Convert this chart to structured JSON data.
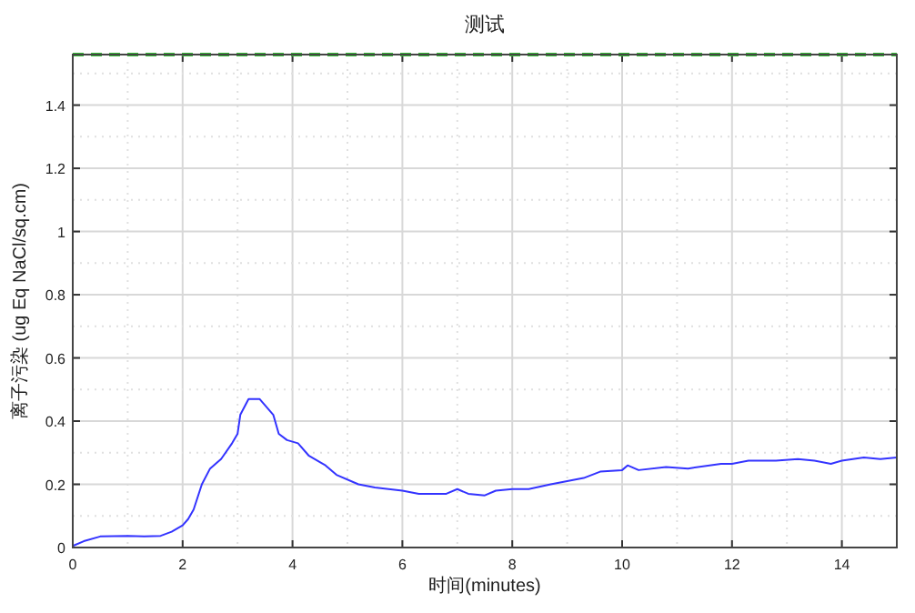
{
  "chart_data": {
    "type": "line",
    "title": "测试",
    "xlabel": "时间(minutes)",
    "ylabel": "离子污染 (ug Eq NaCl/sq.cm)",
    "xlim": [
      0,
      15
    ],
    "ylim": [
      0,
      1.56
    ],
    "xticks": [
      0,
      2,
      4,
      6,
      8,
      10,
      12,
      14
    ],
    "yticks": [
      0,
      0.2,
      0.4,
      0.6,
      0.8,
      1,
      1.2,
      1.4
    ],
    "grid": true,
    "marker": "none",
    "line_style": "solid",
    "ref_lines": [
      {
        "axis": "y",
        "value": 1.56,
        "label": null,
        "color": "#33bb33",
        "line_style": "dashed"
      }
    ],
    "series": [
      {
        "color": "#3333ff",
        "x": [
          0,
          0.2,
          0.5,
          1,
          1.3,
          1.6,
          1.8,
          2,
          2.1,
          2.2,
          2.35,
          2.5,
          2.7,
          2.9,
          3.0,
          3.05,
          3.2,
          3.4,
          3.55,
          3.65,
          3.75,
          3.9,
          4.1,
          4.3,
          4.6,
          4.8,
          5.2,
          5.5,
          6,
          6.3,
          6.8,
          7,
          7.2,
          7.5,
          7.7,
          8,
          8.3,
          8.7,
          9,
          9.3,
          9.6,
          10,
          10.1,
          10.3,
          10.8,
          11.2,
          11.8,
          12,
          12.3,
          12.8,
          13.2,
          13.5,
          13.8,
          14,
          14.4,
          14.7,
          15
        ],
        "values": [
          0.005,
          0.02,
          0.035,
          0.037,
          0.035,
          0.037,
          0.05,
          0.07,
          0.09,
          0.12,
          0.2,
          0.25,
          0.28,
          0.33,
          0.36,
          0.42,
          0.47,
          0.47,
          0.44,
          0.42,
          0.36,
          0.34,
          0.33,
          0.29,
          0.26,
          0.23,
          0.2,
          0.19,
          0.18,
          0.17,
          0.17,
          0.185,
          0.17,
          0.165,
          0.18,
          0.185,
          0.185,
          0.2,
          0.21,
          0.22,
          0.24,
          0.245,
          0.26,
          0.245,
          0.255,
          0.25,
          0.265,
          0.265,
          0.275,
          0.275,
          0.28,
          0.275,
          0.265,
          0.275,
          0.285,
          0.28,
          0.285
        ]
      }
    ]
  }
}
